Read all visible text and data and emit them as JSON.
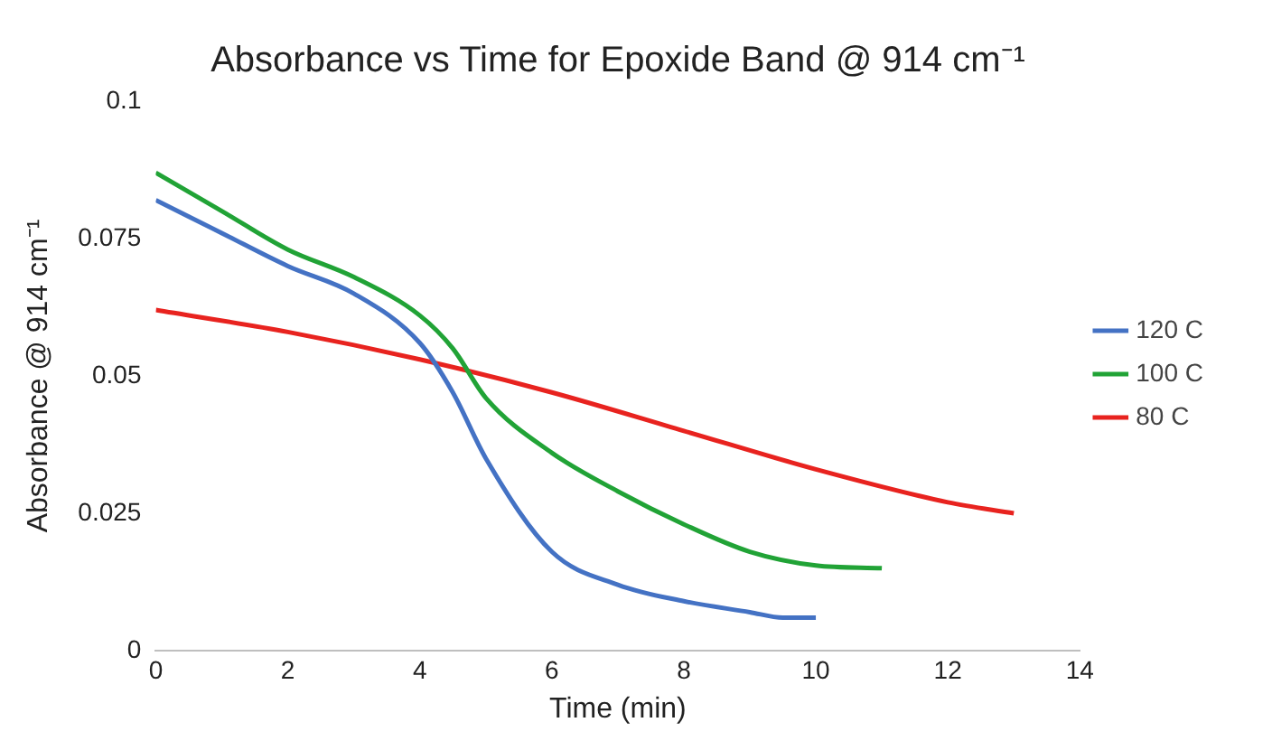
{
  "chart_data": {
    "type": "line",
    "title": "Absorbance vs Time for Epoxide Band @ 914 cm⁻¹",
    "xlabel": "Time (min)",
    "ylabel": "Absorbance @ 914 cm⁻¹",
    "xlim": [
      0,
      14
    ],
    "xticks": [
      0,
      2,
      4,
      6,
      8,
      10,
      12,
      14
    ],
    "ylim": [
      0,
      0.1
    ],
    "yticks": [
      0,
      0.025,
      0.05,
      0.075,
      0.1
    ],
    "grid": false,
    "legend": "right",
    "marker": "none",
    "series": [
      {
        "name": "120 C",
        "color": "#4472c4",
        "x": [
          0,
          1,
          2,
          3,
          4,
          4.5,
          5,
          6,
          7,
          8,
          9,
          9.5,
          10
        ],
        "values": [
          0.082,
          0.076,
          0.07,
          0.065,
          0.056,
          0.047,
          0.035,
          0.018,
          0.012,
          0.009,
          0.007,
          0.006,
          0.006
        ]
      },
      {
        "name": "100 C",
        "color": "#21a336",
        "x": [
          0,
          1,
          2,
          3,
          4,
          4.5,
          5,
          6,
          7,
          8,
          9,
          10,
          11
        ],
        "values": [
          0.087,
          0.08,
          0.073,
          0.068,
          0.061,
          0.055,
          0.046,
          0.036,
          0.029,
          0.023,
          0.018,
          0.0155,
          0.015
        ]
      },
      {
        "name": "80 C",
        "color": "#e8231f",
        "x": [
          0,
          2,
          4,
          6,
          8,
          10,
          12,
          13
        ],
        "values": [
          0.062,
          0.058,
          0.053,
          0.047,
          0.04,
          0.033,
          0.027,
          0.025
        ]
      }
    ]
  }
}
